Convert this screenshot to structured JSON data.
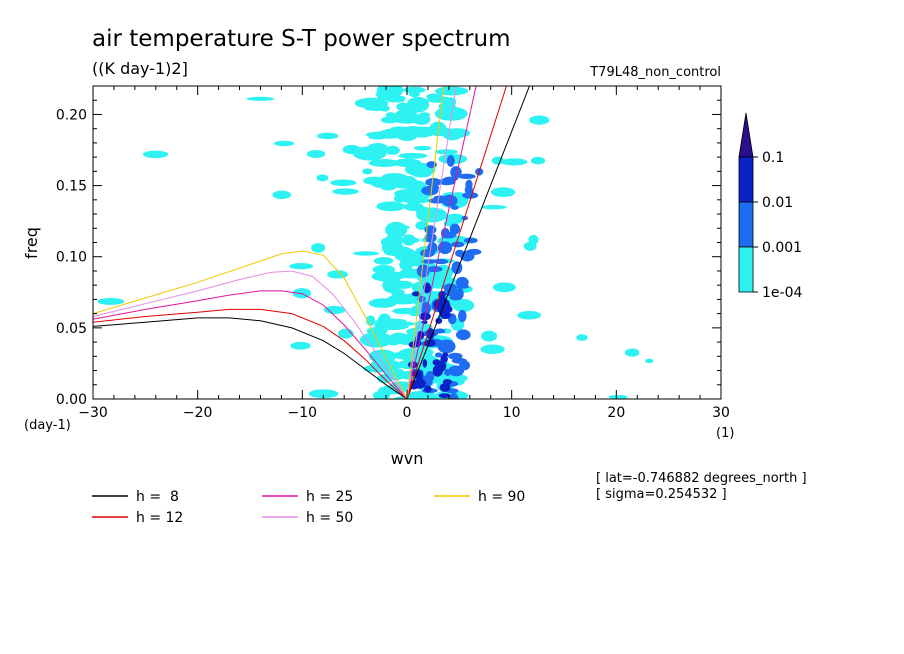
{
  "chart_data": {
    "type": "heatmap",
    "title": "air temperature S-T power spectrum",
    "units_label": "((K day-1)2]",
    "run_label": "T79L48_non_control",
    "xlabel": "wvn",
    "ylabel": "freq",
    "x_unit_label": "(1)",
    "y_unit_label": "(day-1)",
    "xlim": [
      -30,
      30
    ],
    "ylim": [
      0,
      0.22
    ],
    "x_ticks": [
      "-30",
      "-20",
      "-10",
      "0",
      "10",
      "20",
      "30"
    ],
    "y_ticks": [
      "0.00",
      "0.05",
      "0.10",
      "0.15",
      "0.20"
    ],
    "colorbar": {
      "levels": [
        "0.1",
        "0.01",
        "0.001",
        "1e-04"
      ],
      "colors": [
        "#2b0f8f",
        "#0a22c8",
        "#1e6cf2",
        "#2ef2f2"
      ]
    },
    "series": [
      {
        "name": "h =  8",
        "color": "#000000",
        "x": [
          -30,
          -25,
          -20,
          -17,
          -14,
          -11,
          -8,
          -6,
          -4,
          -2,
          0
        ],
        "y": [
          0.051,
          0.054,
          0.057,
          0.057,
          0.055,
          0.05,
          0.041,
          0.032,
          0.021,
          0.01,
          0.0
        ]
      },
      {
        "name": "h = 12",
        "color": "#e00000",
        "x": [
          -30,
          -25,
          -20,
          -17,
          -14,
          -11,
          -8,
          -6,
          -4,
          -2,
          0
        ],
        "y": [
          0.054,
          0.058,
          0.061,
          0.063,
          0.063,
          0.06,
          0.051,
          0.041,
          0.028,
          0.013,
          0.0
        ]
      },
      {
        "name": "h = 25",
        "color": "#e0149c",
        "x": [
          -30,
          -25,
          -20,
          -17,
          -14,
          -12,
          -10,
          -8,
          -6,
          -4,
          -2,
          0
        ],
        "y": [
          0.056,
          0.063,
          0.069,
          0.073,
          0.076,
          0.076,
          0.074,
          0.066,
          0.052,
          0.035,
          0.017,
          0.0
        ]
      },
      {
        "name": "h = 50",
        "color": "#e48de4",
        "x": [
          -30,
          -25,
          -20,
          -16,
          -13,
          -11,
          -9,
          -7,
          -5,
          -3,
          -1,
          0
        ],
        "y": [
          0.058,
          0.067,
          0.076,
          0.084,
          0.089,
          0.09,
          0.086,
          0.073,
          0.054,
          0.033,
          0.011,
          0.0
        ]
      },
      {
        "name": "h = 90",
        "color": "#f0c800",
        "x": [
          -30,
          -25,
          -20,
          -16,
          -12,
          -10,
          -8,
          -6,
          -4,
          -2,
          0
        ],
        "y": [
          0.06,
          0.071,
          0.082,
          0.092,
          0.102,
          0.104,
          0.101,
          0.085,
          0.058,
          0.029,
          0.0
        ]
      }
    ],
    "kelvin_lines": [
      {
        "name": "h =  8",
        "color": "#000000",
        "x_at_ymax": 11.7
      },
      {
        "name": "h = 12",
        "color": "#e00000",
        "x_at_ymax": 9.5
      },
      {
        "name": "h = 25",
        "color": "#e0149c",
        "x_at_ymax": 6.6
      },
      {
        "name": "h = 50",
        "color": "#e48de4",
        "x_at_ymax": 4.7
      },
      {
        "name": "h = 90",
        "color": "#f0c800",
        "x_at_ymax": 3.5
      }
    ],
    "annotations": [
      "[ lat=-0.746882 degrees_north ]",
      "[ sigma=0.254532 ]"
    ]
  }
}
